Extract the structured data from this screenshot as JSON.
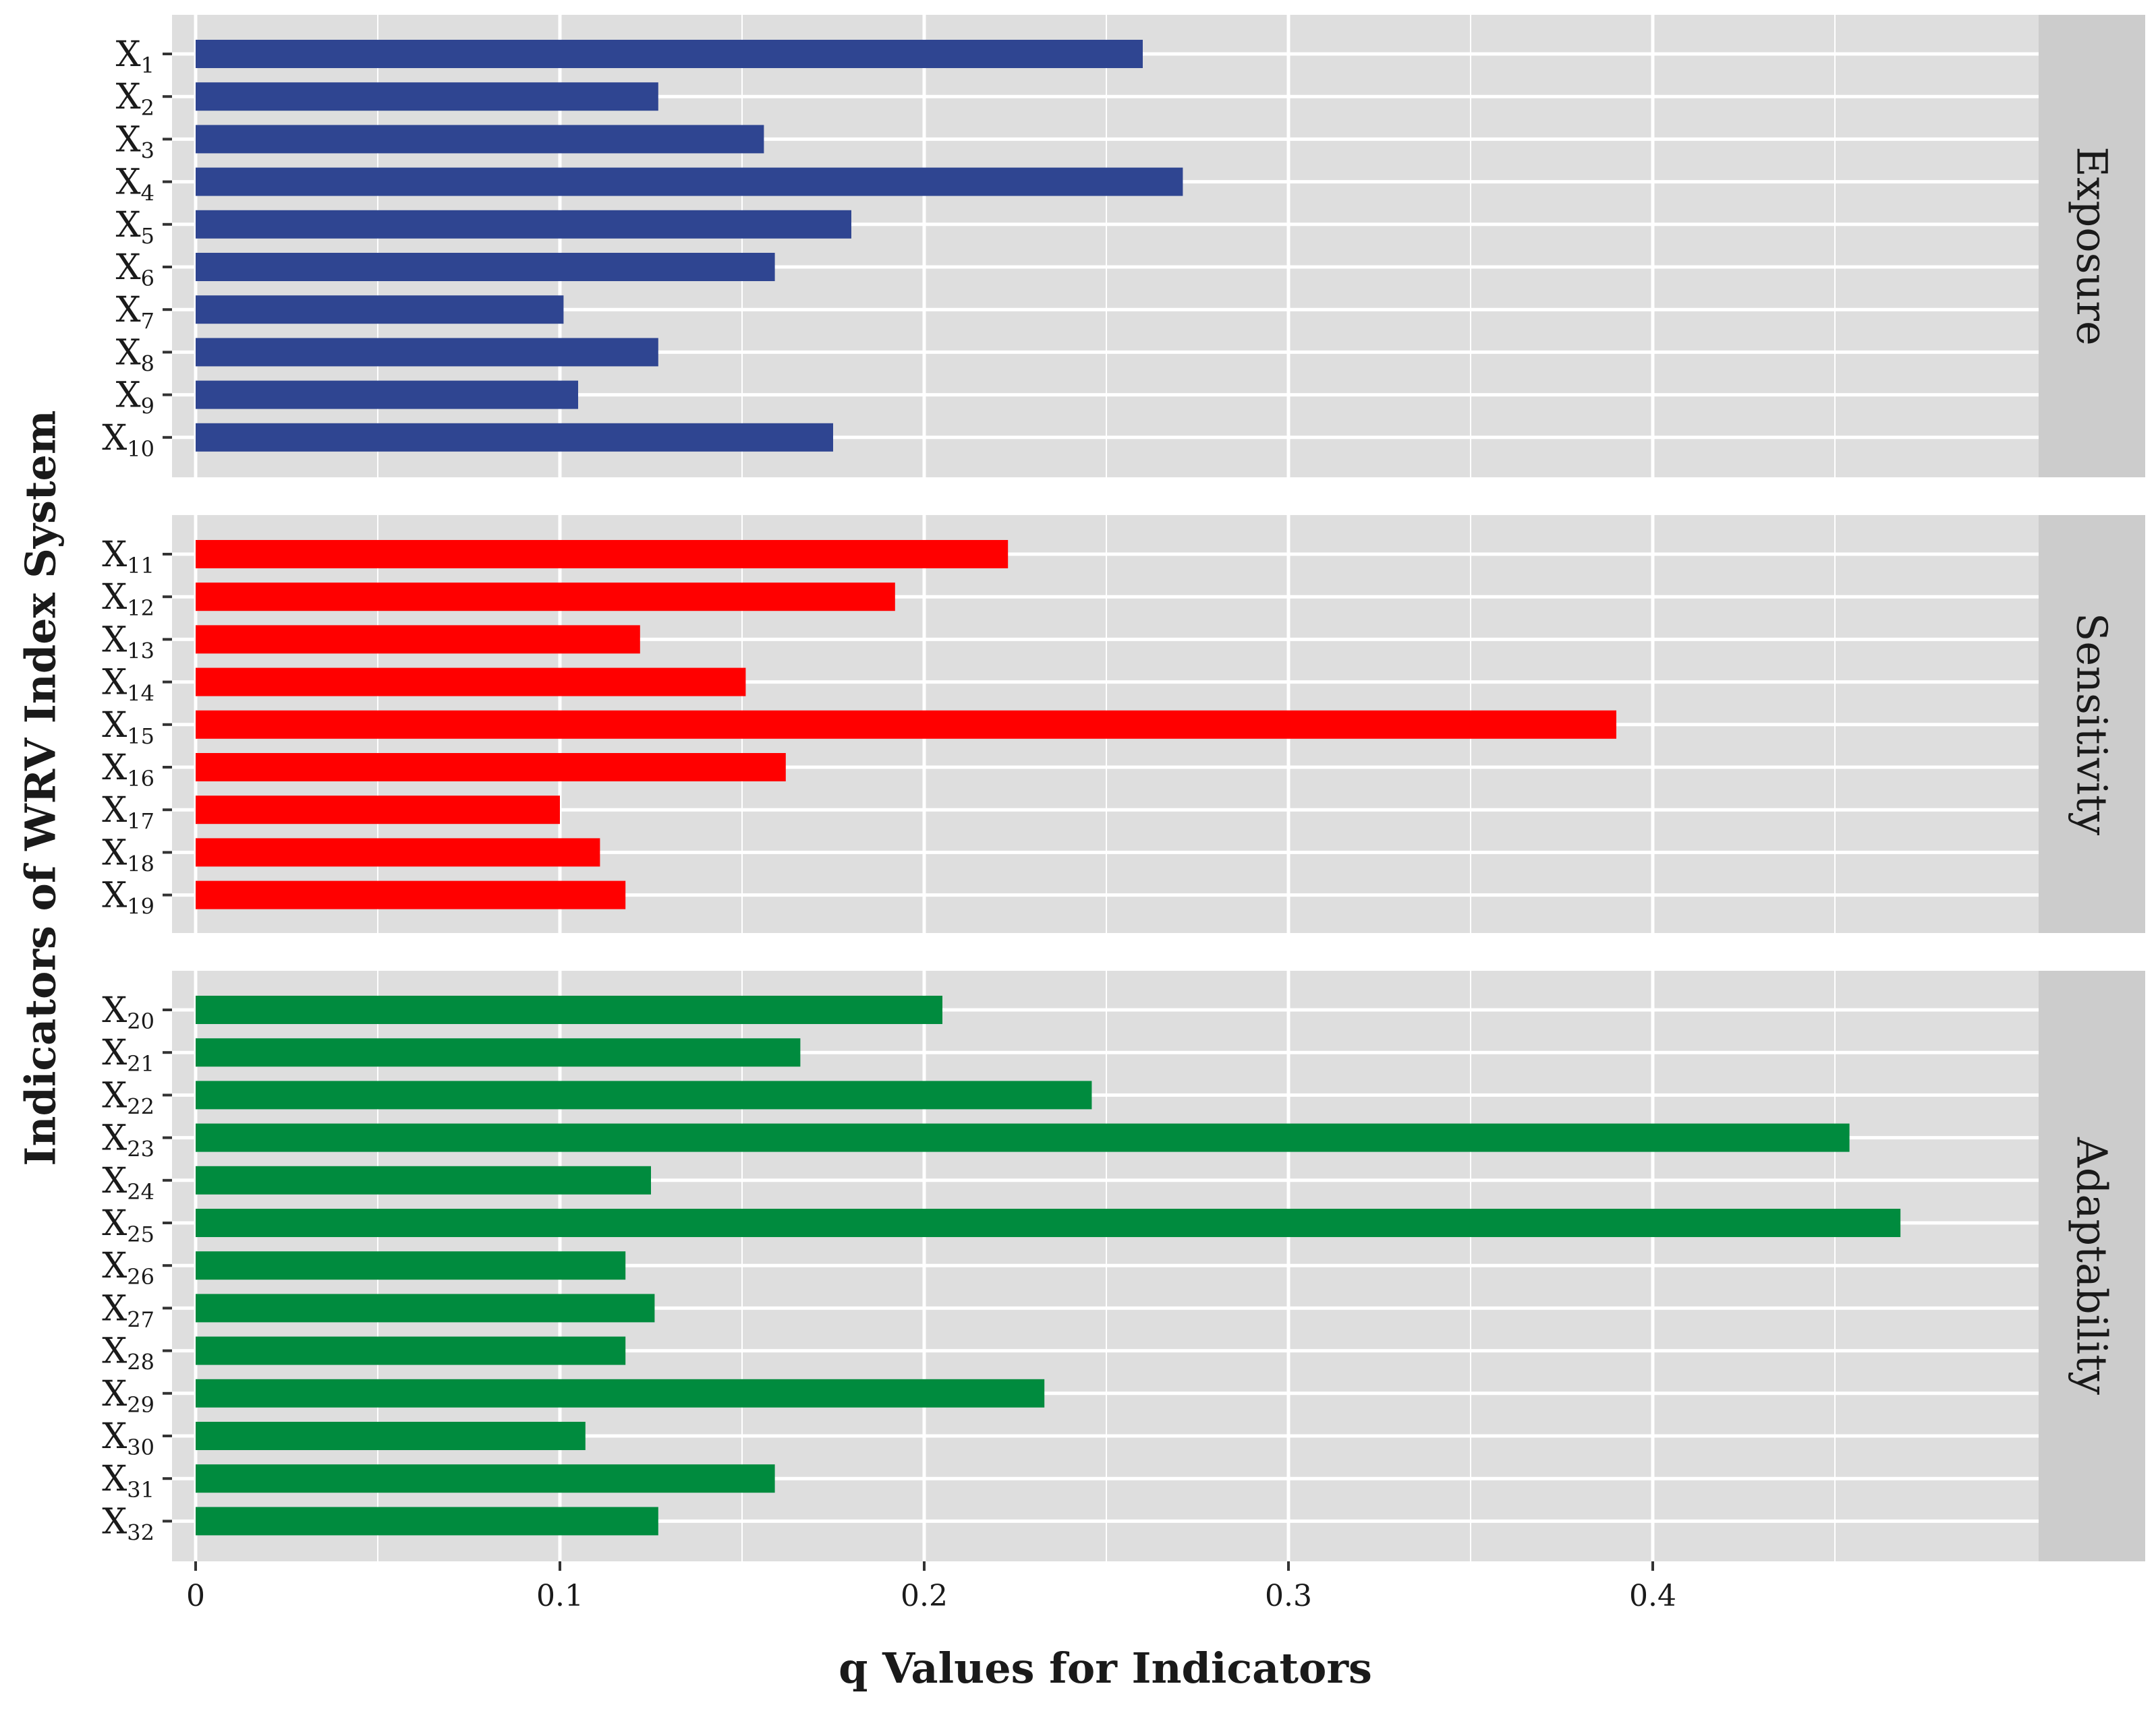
{
  "chart_data": {
    "type": "bar",
    "orientation": "horizontal",
    "faceted": true,
    "title": "",
    "xlabel": "q Values for Indicators",
    "ylabel": "Indicators of WRV Index System",
    "xlim": [
      0,
      0.5
    ],
    "xticks": [
      {
        "value": 0,
        "label": "0"
      },
      {
        "value": 0.1,
        "label": "0.1"
      },
      {
        "value": 0.2,
        "label": "0.2"
      },
      {
        "value": 0.3,
        "label": "0.3"
      },
      {
        "value": 0.4,
        "label": "0.4"
      }
    ],
    "grid": true,
    "panels": [
      {
        "name": "Exposure",
        "color": "#2f4591",
        "categories": [
          {
            "base": "X",
            "sub": "1"
          },
          {
            "base": "X",
            "sub": "2"
          },
          {
            "base": "X",
            "sub": "3"
          },
          {
            "base": "X",
            "sub": "4"
          },
          {
            "base": "X",
            "sub": "5"
          },
          {
            "base": "X",
            "sub": "6"
          },
          {
            "base": "X",
            "sub": "7"
          },
          {
            "base": "X",
            "sub": "8"
          },
          {
            "base": "X",
            "sub": "9"
          },
          {
            "base": "X",
            "sub": "10"
          }
        ],
        "values": [
          0.26,
          0.127,
          0.156,
          0.271,
          0.18,
          0.159,
          0.101,
          0.127,
          0.105,
          0.175
        ]
      },
      {
        "name": "Sensitivity",
        "color": "#ff0000",
        "categories": [
          {
            "base": "X",
            "sub": "11"
          },
          {
            "base": "X",
            "sub": "12"
          },
          {
            "base": "X",
            "sub": "13"
          },
          {
            "base": "X",
            "sub": "14"
          },
          {
            "base": "X",
            "sub": "15"
          },
          {
            "base": "X",
            "sub": "16"
          },
          {
            "base": "X",
            "sub": "17"
          },
          {
            "base": "X",
            "sub": "18"
          },
          {
            "base": "X",
            "sub": "19"
          }
        ],
        "values": [
          0.223,
          0.192,
          0.122,
          0.151,
          0.39,
          0.162,
          0.1,
          0.111,
          0.118
        ]
      },
      {
        "name": "Adaptability",
        "color": "#008b3e",
        "categories": [
          {
            "base": "X",
            "sub": "20"
          },
          {
            "base": "X",
            "sub": "21"
          },
          {
            "base": "X",
            "sub": "22"
          },
          {
            "base": "X",
            "sub": "23"
          },
          {
            "base": "X",
            "sub": "24"
          },
          {
            "base": "X",
            "sub": "25"
          },
          {
            "base": "X",
            "sub": "26"
          },
          {
            "base": "X",
            "sub": "27"
          },
          {
            "base": "X",
            "sub": "28"
          },
          {
            "base": "X",
            "sub": "29"
          },
          {
            "base": "X",
            "sub": "30"
          },
          {
            "base": "X",
            "sub": "31"
          },
          {
            "base": "X",
            "sub": "32"
          }
        ],
        "values": [
          0.205,
          0.166,
          0.246,
          0.454,
          0.125,
          0.468,
          0.118,
          0.126,
          0.118,
          0.233,
          0.107,
          0.159,
          0.127
        ]
      }
    ],
    "colors": {
      "panel_background": "#dedede",
      "strip_background": "#cccccc",
      "gridline": "#ffffff",
      "axis_text": "#1a1a1a",
      "tick_mark": "#333333"
    }
  }
}
